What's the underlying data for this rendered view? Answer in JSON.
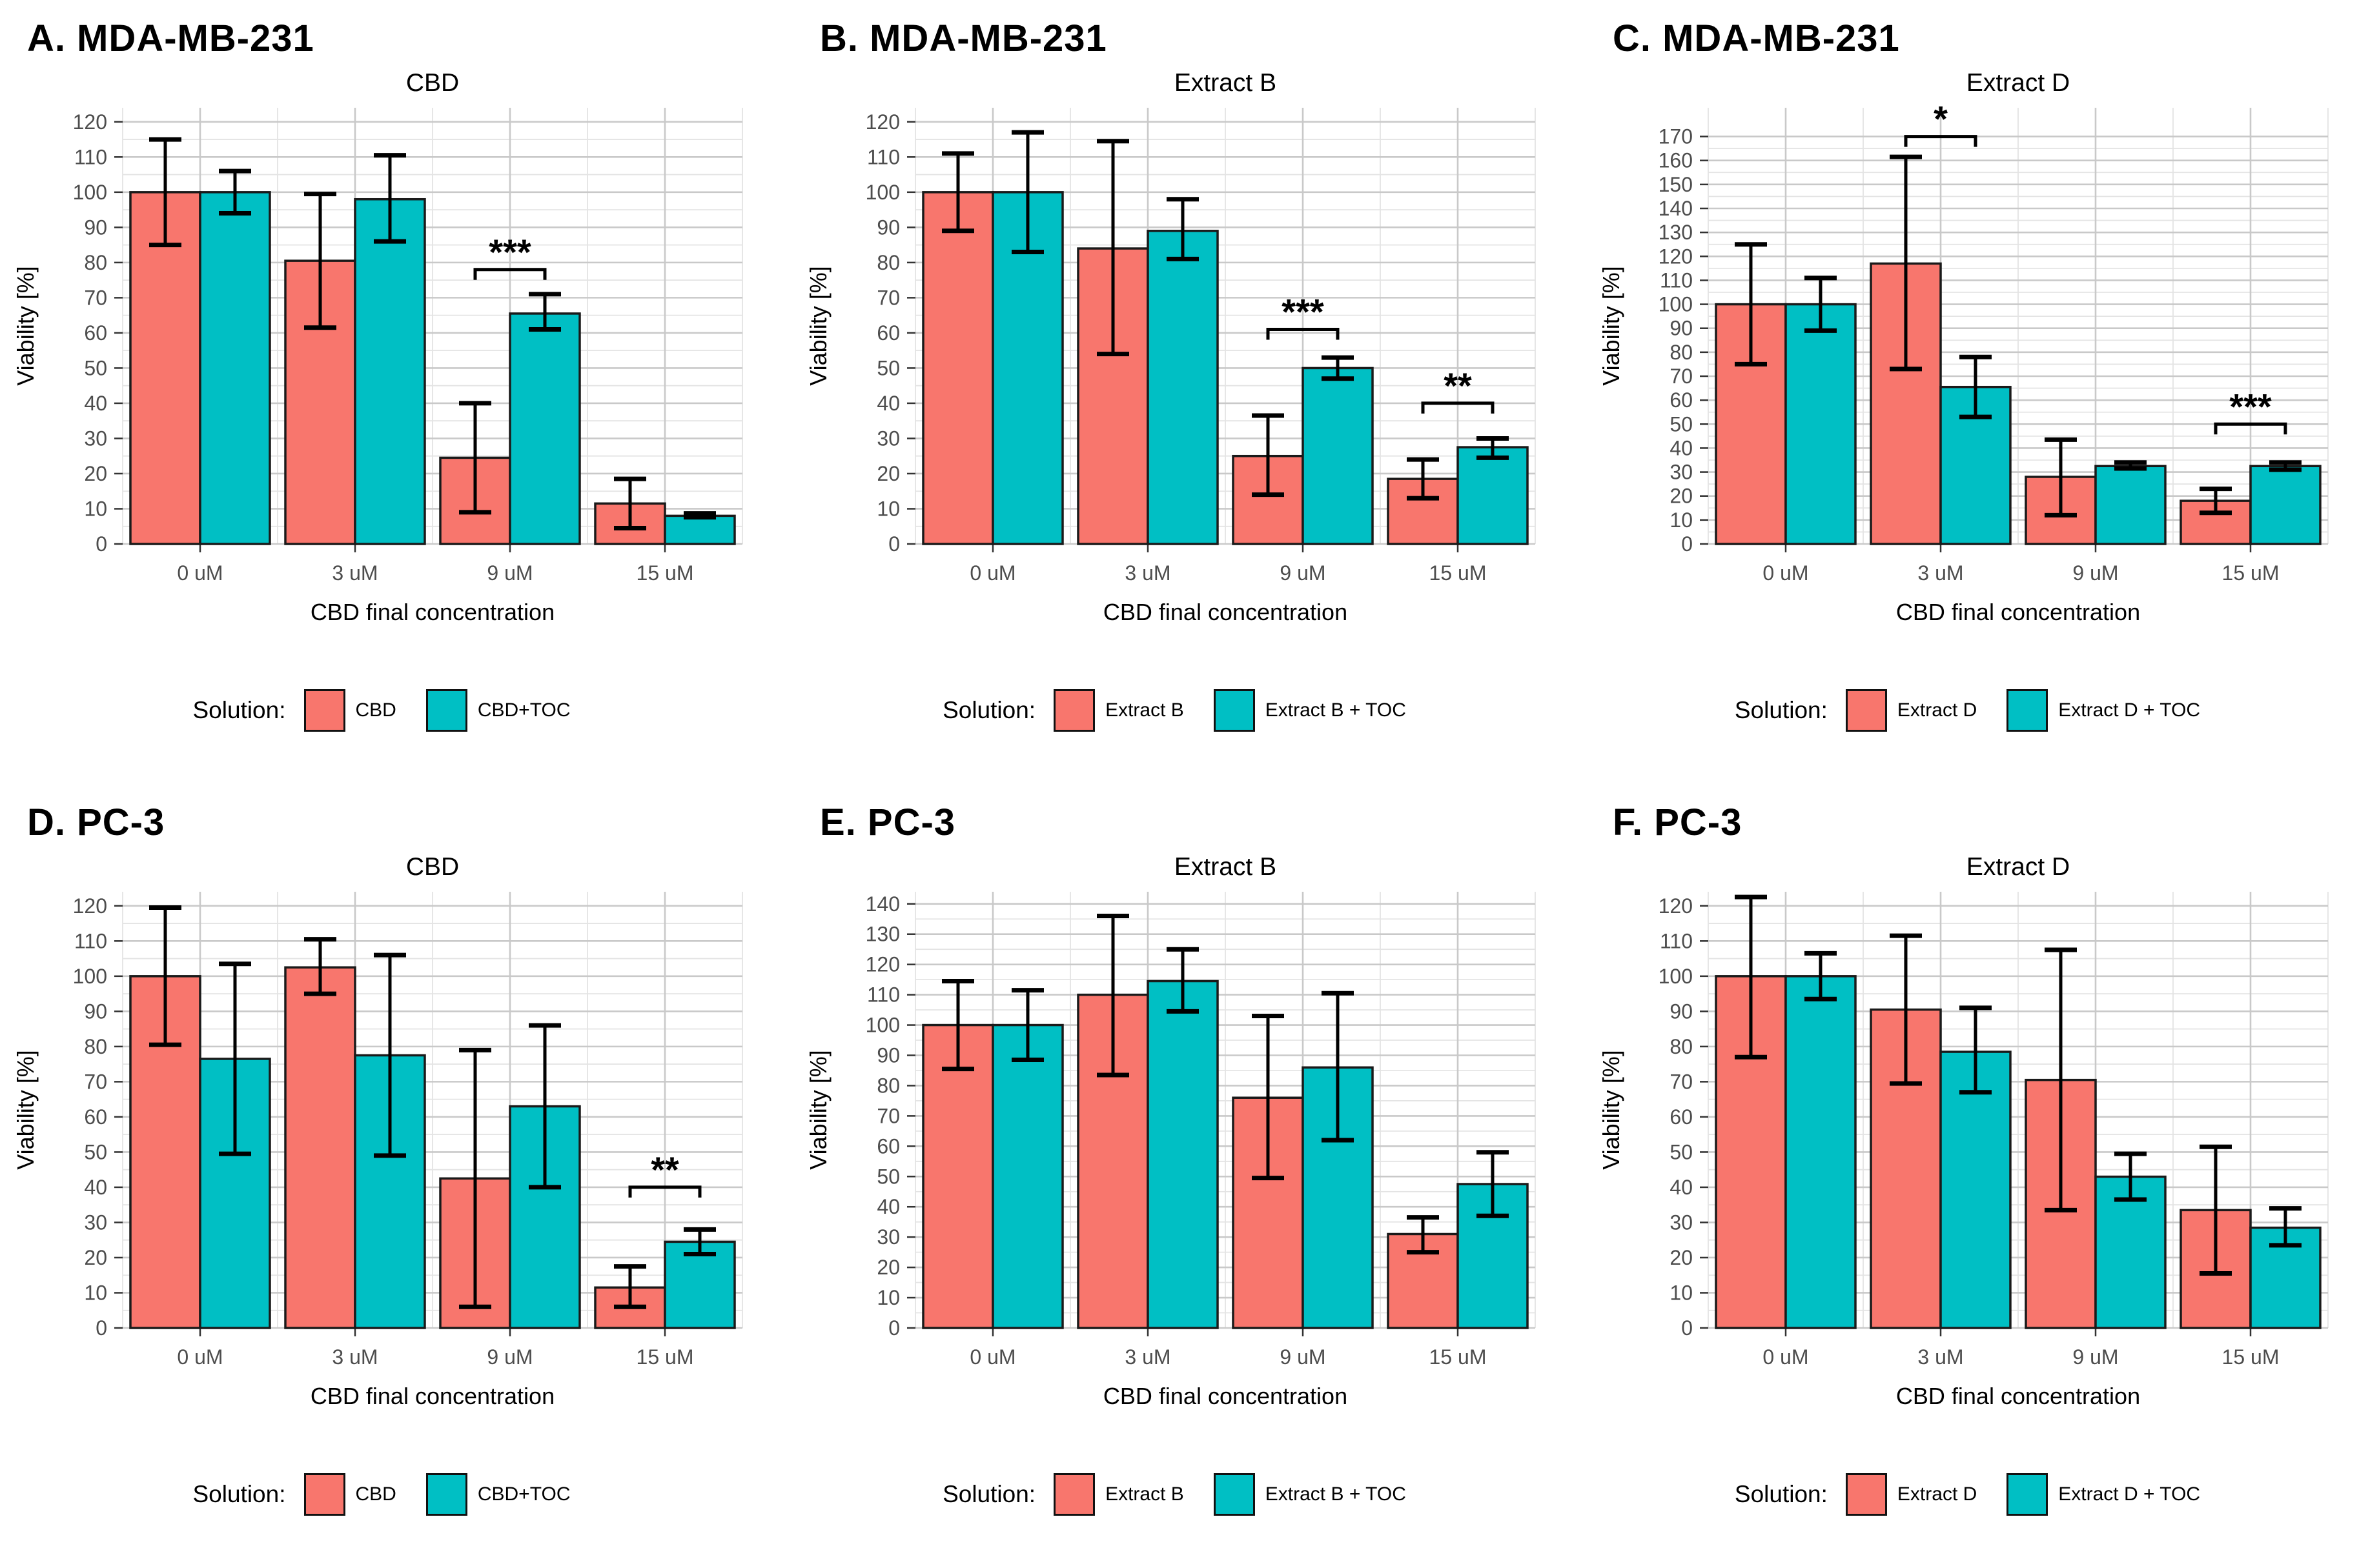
{
  "figure": {
    "legend_title": "Solution:",
    "colors": {
      "series1": "#F8766D",
      "series2": "#00BFC4",
      "bar_stroke": "#1a1a1a",
      "grid_major": "#c9c9c9",
      "grid_minor": "#e4e4e4",
      "tick_mark": "#333333",
      "tick_label": "#4d4d4d",
      "axis_title": "#000000",
      "error_bar": "#000000",
      "significance": "#000000"
    }
  },
  "chart_data": [
    {
      "type": "bar",
      "id": "A",
      "header": "A. MDA-MB-231",
      "title": "CBD",
      "xlabel": "CBD final concentration",
      "ylabel": "Viability [%]",
      "legend_title": "Solution:",
      "categories": [
        "0 uM",
        "3 uM",
        "9 uM",
        "15 uM"
      ],
      "ymax": 120,
      "ytick_step": 10,
      "ytop": 124,
      "grid": true,
      "legend_position": "bottom",
      "series": [
        {
          "name": "CBD",
          "values": [
            100,
            80.5,
            24.5,
            11.5
          ],
          "err_low": [
            85,
            61.5,
            9,
            4.5
          ],
          "err_high": [
            115,
            99.5,
            40,
            18.5
          ]
        },
        {
          "name": "CBD+TOC",
          "values": [
            100,
            98,
            65.5,
            8
          ],
          "err_low": [
            94,
            86,
            61,
            7.6
          ],
          "err_high": [
            106,
            110.5,
            71,
            8.7
          ]
        }
      ],
      "significance": [
        {
          "category": 2,
          "label": "***",
          "y": 78
        }
      ]
    },
    {
      "type": "bar",
      "id": "B",
      "header": "B. MDA-MB-231",
      "title": "Extract B",
      "xlabel": "CBD final concentration",
      "ylabel": "Viability [%]",
      "legend_title": "Solution:",
      "categories": [
        "0 uM",
        "3 uM",
        "9 uM",
        "15 uM"
      ],
      "ymax": 120,
      "ytick_step": 10,
      "ytop": 124,
      "grid": true,
      "legend_position": "bottom",
      "series": [
        {
          "name": "Extract B",
          "values": [
            100,
            84,
            25,
            18.5
          ],
          "err_low": [
            89,
            54,
            14,
            13
          ],
          "err_high": [
            111,
            114.5,
            36.5,
            24
          ]
        },
        {
          "name": "Extract B + TOC",
          "values": [
            100,
            89,
            50,
            27.5
          ],
          "err_low": [
            83,
            81,
            47,
            24.5
          ],
          "err_high": [
            117,
            98,
            53,
            30
          ]
        }
      ],
      "significance": [
        {
          "category": 2,
          "label": "***",
          "y": 61
        },
        {
          "category": 3,
          "label": "**",
          "y": 40
        }
      ]
    },
    {
      "type": "bar",
      "id": "C",
      "header": "C. MDA-MB-231",
      "title": "Extract D",
      "xlabel": "CBD final concentration",
      "ylabel": "Viability [%]",
      "legend_title": "Solution:",
      "categories": [
        "0 uM",
        "3 uM",
        "9 uM",
        "15 uM"
      ],
      "ymax": 170,
      "ytick_step": 10,
      "ytop": 182,
      "grid": true,
      "legend_position": "bottom",
      "series": [
        {
          "name": "Extract D",
          "values": [
            100,
            117,
            28,
            18
          ],
          "err_low": [
            75,
            73,
            12,
            13
          ],
          "err_high": [
            125,
            161.5,
            43.5,
            23
          ]
        },
        {
          "name": "Extract D + TOC",
          "values": [
            100,
            65.5,
            32.5,
            32.5
          ],
          "err_low": [
            89,
            53,
            31.5,
            31
          ],
          "err_high": [
            111,
            78,
            34,
            34
          ]
        }
      ],
      "significance": [
        {
          "category": 1,
          "label": "*",
          "y": 170
        },
        {
          "category": 3,
          "label": "***",
          "y": 50
        }
      ]
    },
    {
      "type": "bar",
      "id": "D",
      "header": "D. PC-3",
      "title": "CBD",
      "xlabel": "CBD final concentration",
      "ylabel": "Viability [%]",
      "legend_title": "Solution:",
      "categories": [
        "0 uM",
        "3 uM",
        "9 uM",
        "15 uM"
      ],
      "ymax": 120,
      "ytick_step": 10,
      "ytop": 124,
      "grid": true,
      "legend_position": "bottom",
      "series": [
        {
          "name": "CBD",
          "values": [
            100,
            102.5,
            42.5,
            11.5
          ],
          "err_low": [
            80.5,
            95,
            6,
            6
          ],
          "err_high": [
            119.5,
            110.5,
            79,
            17.5
          ]
        },
        {
          "name": "CBD+TOC",
          "values": [
            76.5,
            77.5,
            63,
            24.5
          ],
          "err_low": [
            49.5,
            49,
            40,
            21
          ],
          "err_high": [
            103.5,
            106,
            86,
            28
          ]
        }
      ],
      "significance": [
        {
          "category": 3,
          "label": "**",
          "y": 40
        }
      ]
    },
    {
      "type": "bar",
      "id": "E",
      "header": "E. PC-3",
      "title": "Extract B",
      "xlabel": "CBD final concentration",
      "ylabel": "Viability [%]",
      "legend_title": "Solution:",
      "categories": [
        "0 uM",
        "3 uM",
        "9 uM",
        "15 uM"
      ],
      "ymax": 140,
      "ytick_step": 10,
      "ytop": 144,
      "grid": true,
      "legend_position": "bottom",
      "series": [
        {
          "name": "Extract B",
          "values": [
            100,
            110,
            76,
            31
          ],
          "err_low": [
            85.5,
            83.5,
            49.5,
            25
          ],
          "err_high": [
            114.5,
            136,
            103,
            36.5
          ]
        },
        {
          "name": "Extract B + TOC",
          "values": [
            100,
            114.5,
            86,
            47.5
          ],
          "err_low": [
            88.5,
            104.5,
            62,
            37
          ],
          "err_high": [
            111.5,
            125,
            110.5,
            58
          ]
        }
      ],
      "significance": []
    },
    {
      "type": "bar",
      "id": "F",
      "header": "F. PC-3",
      "title": "Extract D",
      "xlabel": "CBD final concentration",
      "ylabel": "Viability [%]",
      "legend_title": "Solution:",
      "categories": [
        "0 uM",
        "3 uM",
        "9 uM",
        "15 uM"
      ],
      "ymax": 120,
      "ytick_step": 10,
      "ytop": 124,
      "grid": true,
      "legend_position": "bottom",
      "series": [
        {
          "name": "Extract D",
          "values": [
            100,
            90.5,
            70.5,
            33.5
          ],
          "err_low": [
            77,
            69.5,
            33.5,
            15.5
          ],
          "err_high": [
            122.5,
            111.5,
            107.5,
            51.5
          ]
        },
        {
          "name": "Extract D + TOC",
          "values": [
            100,
            78.5,
            43,
            28.5
          ],
          "err_low": [
            93.5,
            67,
            36.5,
            23.5
          ],
          "err_high": [
            106.5,
            91,
            49.5,
            34
          ]
        }
      ],
      "significance": []
    }
  ]
}
